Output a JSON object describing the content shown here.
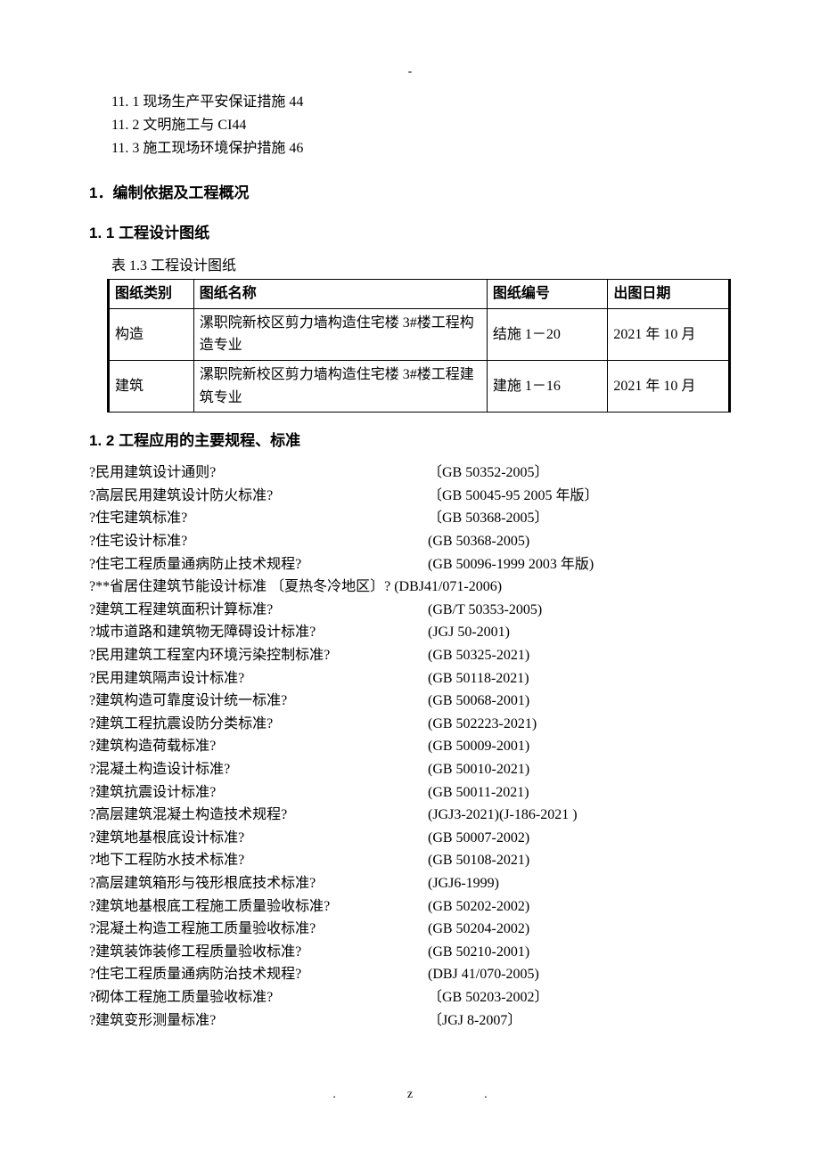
{
  "markers": {
    "top": "-",
    "bottom_left": ".",
    "bottom_right": "z."
  },
  "outline": [
    "11. 1 现场生产平安保证措施 44",
    "11. 2 文明施工与 CI44",
    "11. 3 施工现场环境保护措施 46"
  ],
  "section1": {
    "title": "1．编制依据及工程概况",
    "sub1_title": "1. 1 工程设计图纸",
    "table_caption": "表 1.3  工程设计图纸",
    "columns": [
      "图纸类别",
      "图纸名称",
      "图纸编号",
      "出图日期"
    ],
    "rows": [
      [
        "构造",
        "漯职院新校区剪力墙构造住宅楼 3#楼工程构造专业",
        "结施 1－20",
        "2021 年 10 月"
      ],
      [
        "建筑",
        "漯职院新校区剪力墙构造住宅楼 3#楼工程建筑专业",
        "建施 1－16",
        "2021 年 10 月"
      ]
    ],
    "sub2_title": "1. 2 工程应用的主要规程、标准",
    "standards": [
      {
        "name": "?民用建筑设计通则?",
        "code": "〔GB 50352-2005〕"
      },
      {
        "name": "?高层民用建筑设计防火标准?",
        "code": "〔GB 50045-95 2005 年版〕"
      },
      {
        "name": "?住宅建筑标准?",
        "code": "〔GB 50368-2005〕"
      },
      {
        "name": "?住宅设计标准?",
        "code": "(GB 50368-2005)"
      },
      {
        "name": "?住宅工程质量通病防止技术规程?",
        "code": "(GB 50096-1999 2003 年版)"
      },
      {
        "name": "?**省居住建筑节能设计标准 〔夏热冬冷地区〕? (DBJ41/071-2006)",
        "code": ""
      },
      {
        "name": "?建筑工程建筑面积计算标准?",
        "code": "(GB/T 50353-2005)"
      },
      {
        "name": "?城市道路和建筑物无障碍设计标准?",
        "code": "(JGJ 50-2001)"
      },
      {
        "name": "?民用建筑工程室内环境污染控制标准?",
        "code": "(GB 50325-2021)"
      },
      {
        "name": "?民用建筑隔声设计标准?",
        "code": " (GB 50118-2021)"
      },
      {
        "name": "?建筑构造可靠度设计统一标准?",
        "code": "(GB 50068-2001)"
      },
      {
        "name": "?建筑工程抗震设防分类标准?",
        "code": "(GB 502223-2021)"
      },
      {
        "name": "?建筑构造荷载标准?",
        "code": "(GB 50009-2001)"
      },
      {
        "name": "?混凝土构造设计标准?",
        "code": "(GB 50010-2021)"
      },
      {
        "name": "?建筑抗震设计标准?",
        "code": "(GB 50011-2021)"
      },
      {
        "name": "?高层建筑混凝土构造技术规程?",
        "code": "(JGJ3-2021)(J-186-2021 )"
      },
      {
        "name": "?建筑地基根底设计标准?",
        "code": "(GB 50007-2002)"
      },
      {
        "name": "?地下工程防水技术标准?",
        "code": "(GB 50108-2021)"
      },
      {
        "name": "?高层建筑箱形与筏形根底技术标准?",
        "code": "(JGJ6-1999)"
      },
      {
        "name": "?建筑地基根底工程施工质量验收标准?",
        "code": "(GB 50202-2002)"
      },
      {
        "name": "?混凝土构造工程施工质量验收标准?",
        "code": "(GB 50204-2002)"
      },
      {
        "name": "?建筑装饰装修工程质量验收标准?",
        "code": "(GB 50210-2001)"
      },
      {
        "name": "?住宅工程质量通病防治技术规程?",
        "code": "(DBJ 41/070-2005)"
      },
      {
        "name": "?砌体工程施工质量验收标准?",
        "code": "〔GB 50203-2002〕"
      },
      {
        "name": "?建筑变形测量标准?",
        "code": "〔JGJ 8-2007〕"
      }
    ]
  }
}
